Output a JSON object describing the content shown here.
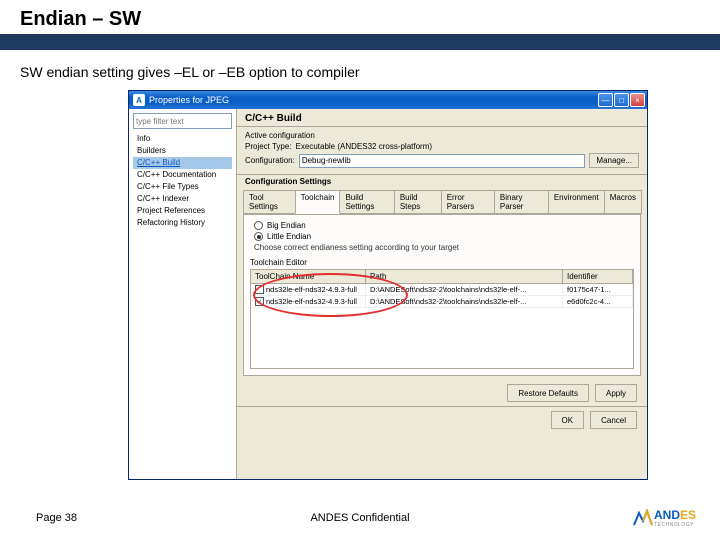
{
  "slide": {
    "title": "Endian – SW",
    "subtitle": "SW endian setting gives –EL or –EB option to compiler",
    "page": "Page 38",
    "confidential": "ANDES Confidential"
  },
  "colors": {
    "titlebar_dark": "#1e3a5f",
    "red_oval": "#e03030",
    "xp_blue": "#0a5fc7"
  },
  "dialog": {
    "title": "Properties for JPEG",
    "filter_placeholder": "type filter text",
    "tree": [
      {
        "label": "Info",
        "indent": 0
      },
      {
        "label": "Builders",
        "indent": 0
      },
      {
        "label": "C/C++ Build",
        "indent": 0,
        "sel": true,
        "link": true
      },
      {
        "label": "C/C++ Documentation",
        "indent": 0
      },
      {
        "label": "C/C++ File Types",
        "indent": 0
      },
      {
        "label": "C/C++ Indexer",
        "indent": 0
      },
      {
        "label": "Project References",
        "indent": 0
      },
      {
        "label": "Refactoring History",
        "indent": 0
      }
    ],
    "header": "C/C++ Build",
    "active_config_label": "Active configuration",
    "project_type_label": "Project Type:",
    "project_type_value": "Executable (ANDES32 cross-platform)",
    "configuration_label": "Configuration:",
    "configuration_value": "Debug-newlib",
    "manage_btn": "Manage...",
    "sub_header": "Configuration Settings",
    "tabs": [
      "Tool Settings",
      "Toolchain",
      "Build Settings",
      "Build Steps",
      "Error Parsers",
      "Binary Parser",
      "Environment",
      "Macros"
    ],
    "active_tab": 1,
    "endian": {
      "big_label": "Big Endian",
      "little_label": "Little Endian",
      "selected": "little",
      "note": "Choose correct endianess setting according to your target"
    },
    "toolchain": {
      "group_title": "Toolchain Editor",
      "columns": [
        "ToolChain Name",
        "Path",
        "Identifier"
      ],
      "rows": [
        {
          "checked": false,
          "name": "nds32le-elf-nds32-4.9.3-full",
          "path": "D:\\ANDESoft\\nds32-2\\toolchains\\nds32le-elf-...",
          "id": "f0175c47-1..."
        },
        {
          "checked": true,
          "name": "nds32le-elf-nds32-4.9.3-full",
          "path": "D:\\ANDESoft\\nds32-2\\toolchains\\nds32le-elf-...",
          "id": "e6d0fc2c-4..."
        }
      ]
    },
    "restore_btn": "Restore Defaults",
    "apply_btn": "Apply",
    "ok_btn": "OK",
    "cancel_btn": "Cancel"
  },
  "logo": {
    "brand1": "AND",
    "brand2": "ES",
    "sub": "TECHNOLOGY"
  }
}
